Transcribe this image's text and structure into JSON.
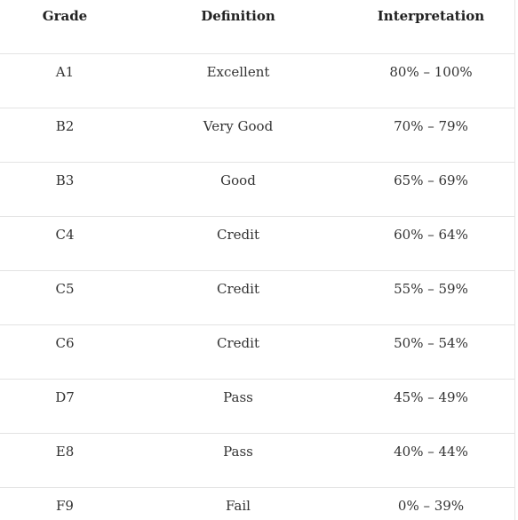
{
  "table": {
    "headers": [
      "Grade",
      "Definition",
      "Interpretation"
    ],
    "rows": [
      [
        "A1",
        "Excellent",
        "80% – 100%"
      ],
      [
        "B2",
        "Very Good",
        "70% – 79%"
      ],
      [
        "B3",
        "Good",
        "65% – 69%"
      ],
      [
        "C4",
        "Credit",
        "60% – 64%"
      ],
      [
        "C5",
        "Credit",
        "55% – 59%"
      ],
      [
        "C6",
        "Credit",
        "50% – 54%"
      ],
      [
        "D7",
        "Pass",
        "45% – 49%"
      ],
      [
        "E8",
        "Pass",
        "40% – 44%"
      ],
      [
        "F9",
        "Fail",
        "0% – 39%"
      ]
    ]
  }
}
